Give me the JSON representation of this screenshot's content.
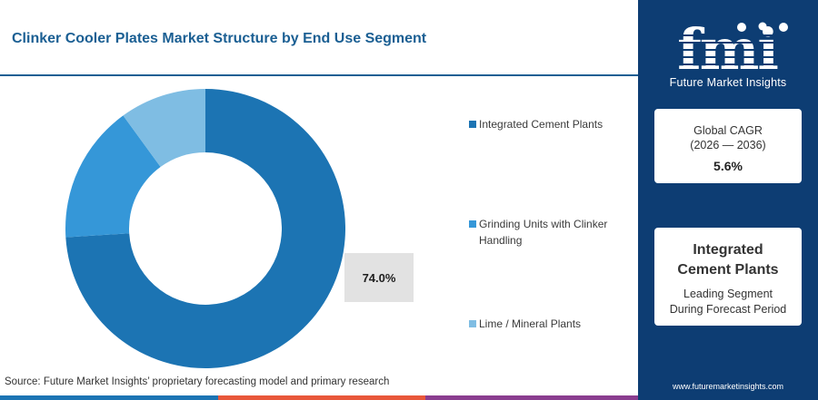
{
  "title": "Clinker Cooler Plates Market Structure by End Use Segment",
  "source": "Source: Future Market Insights’ proprietary forecasting model and primary research",
  "chart_data": {
    "type": "pie",
    "donut": true,
    "categories": [
      "Integrated Cement Plants",
      "Grinding Units with Clinker Handling",
      "Lime / Mineral Plants"
    ],
    "values": [
      74.0,
      16.0,
      10.0
    ],
    "colors": [
      "#1c74b3",
      "#3597d8",
      "#7fbde3"
    ],
    "data_labels": [
      "74.0%"
    ],
    "legend_position": "right"
  },
  "legend": {
    "items": [
      {
        "label_lines": [
          "Integrated Cement Plants"
        ],
        "color": "#1c74b3"
      },
      {
        "label_lines": [
          "Grinding Units with Clinker",
          "Handling"
        ],
        "color": "#3597d8"
      },
      {
        "label_lines": [
          "Lime / Mineral Plants"
        ],
        "color": "#7fbde3"
      }
    ]
  },
  "sidebar": {
    "logo_text": "fmi",
    "logo_subtitle": "Future Market Insights",
    "cagr": {
      "label": "Global CAGR",
      "period": "(2026 — 2036)",
      "value": "5.6%"
    },
    "segment": {
      "title_lines": [
        "Integrated",
        "Cement Plants"
      ],
      "desc_lines": [
        "Leading Segment",
        "During Forecast Period"
      ]
    },
    "website": "www.futuremarketinsights.com"
  },
  "bottom_bar_colors": [
    "#1c74b3",
    "#e8573a",
    "#8a3d8f",
    "#1c74b3"
  ]
}
